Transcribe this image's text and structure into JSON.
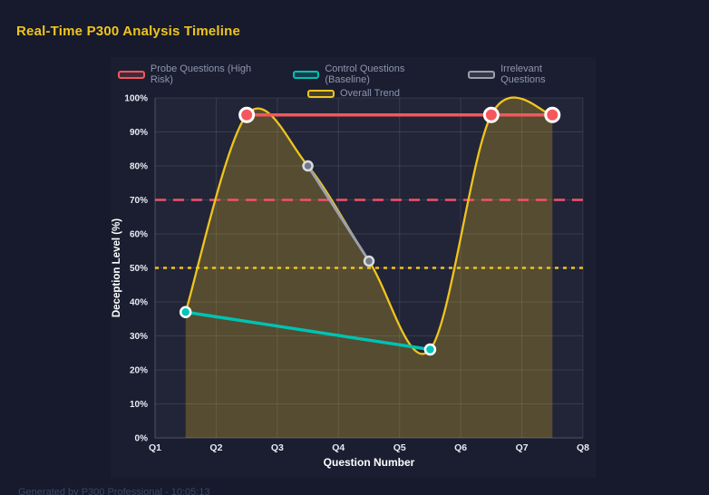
{
  "page": {
    "title": "Real-Time P300 Analysis Timeline",
    "footer": "Generated by P300 Professional - 10:05:13"
  },
  "colors": {
    "background": "#161a2c",
    "title": "#f0c41f",
    "grid": "rgba(255,255,255,0.10)",
    "axis": "rgba(255,255,255,0.22)",
    "tick_text": "#e8ebf3",
    "axis_title_text": "#ffffff",
    "legend_text": "#8d96b0",
    "plot_background": "rgba(255,255,255,0.035)"
  },
  "chart_data": {
    "type": "line",
    "title": "Real-Time P300 Analysis Timeline",
    "xlabel": "Question Number",
    "ylabel": "Deception Level (%)",
    "x_tick_labels": [
      "Q1",
      "Q2",
      "Q3",
      "Q4",
      "Q5",
      "Q6",
      "Q7",
      "Q8"
    ],
    "x_range": [
      1,
      8
    ],
    "ylim": [
      0,
      100
    ],
    "y_tick_step": 10,
    "y_tick_suffix": "%",
    "grid": true,
    "legend_position": "top",
    "series": [
      {
        "name": "Probe Questions (High Risk)",
        "color": "#f4575c",
        "shape": "straight",
        "points": [
          [
            2.5,
            95
          ],
          [
            6.5,
            95
          ],
          [
            7.5,
            95
          ]
        ],
        "line_width": 3.5,
        "point_radius": 7.5,
        "point_fill": "#f4575c",
        "point_stroke": "#ffffff"
      },
      {
        "name": "Control Questions (Baseline)",
        "color": "#00c2b2",
        "shape": "straight",
        "points": [
          [
            1.5,
            37
          ],
          [
            5.5,
            26
          ]
        ],
        "line_width": 3.5,
        "point_radius": 5.5,
        "point_fill": "#00c6b8",
        "point_stroke": "#ffffff"
      },
      {
        "name": "Irrelevant Questions",
        "color": "#9aa0ab",
        "shape": "straight",
        "points": [
          [
            3.5,
            80
          ],
          [
            4.5,
            52
          ]
        ],
        "line_width": 3,
        "point_radius": 5,
        "point_fill": "#737884",
        "point_stroke": "#d8dbe2"
      },
      {
        "name": "Overall Trend",
        "color": "#f0c41f",
        "shape": "spline",
        "fill": true,
        "fill_opacity": 0.25,
        "points": [
          [
            1.5,
            37
          ],
          [
            2.5,
            95
          ],
          [
            3.5,
            80
          ],
          [
            4.5,
            52
          ],
          [
            5.5,
            26
          ],
          [
            6.5,
            95
          ],
          [
            7.5,
            95
          ]
        ],
        "line_width": 2.3,
        "point_radius": 0
      }
    ],
    "thresholds": [
      {
        "value": 70,
        "color": "#f4506b",
        "dash": "12 8",
        "width": 2.4
      },
      {
        "value": 50,
        "color": "#f0c41f",
        "dash": "4 5",
        "width": 2.4
      }
    ]
  }
}
